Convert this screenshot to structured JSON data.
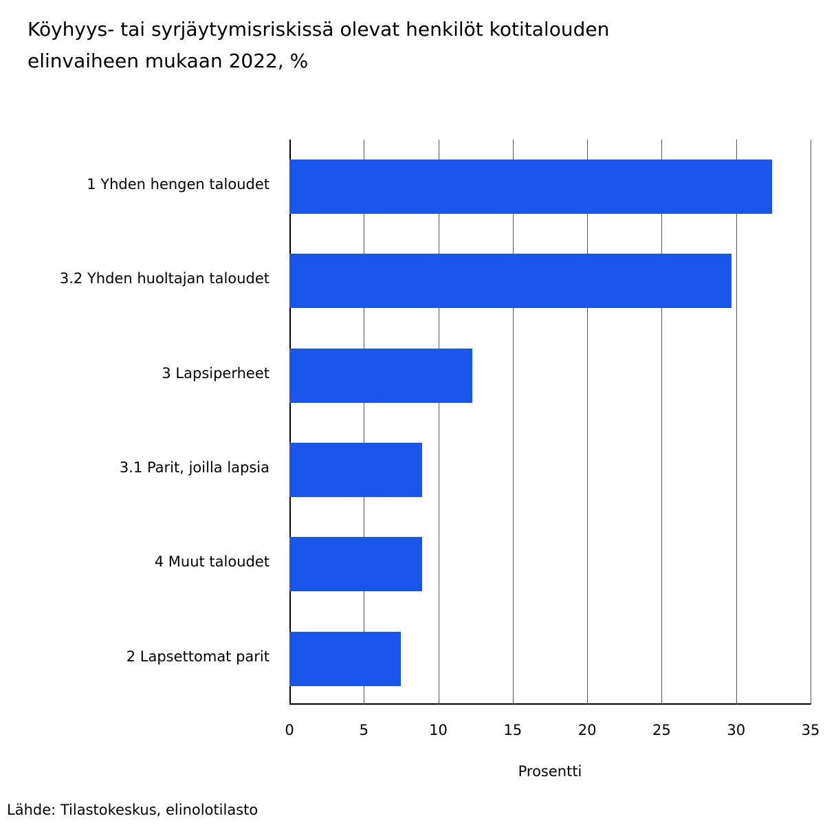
{
  "title": "Köyhyys- tai syrjäytymisriskissä olevat henkilöt kotitalouden elinvaiheen mukaan 2022, %",
  "source": "Lähde: Tilastokeskus, elinolotilasto",
  "colors": {
    "bar": "#1a56eb",
    "grid": "#555555"
  },
  "chart_data": {
    "type": "bar",
    "orientation": "horizontal",
    "title": "Köyhyys- tai syrjäytymisriskissä olevat henkilöt kotitalouden elinvaiheen mukaan 2022, %",
    "categories": [
      "1 Yhden hengen taloudet",
      "3.2 Yhden huoltajan taloudet",
      "3 Lapsiperheet",
      "3.1 Parit, joilla lapsia",
      "4 Muut taloudet",
      "2 Lapsettomat parit"
    ],
    "values": [
      32.4,
      29.7,
      12.3,
      8.9,
      8.9,
      7.5
    ],
    "xlabel": "Prosentti",
    "ylabel": "",
    "xlim": [
      0,
      35
    ],
    "xticks": [
      "0",
      "5",
      "10",
      "15",
      "20",
      "25",
      "30",
      "35"
    ],
    "grid": true,
    "legend": null,
    "source": "Lähde: Tilastokeskus, elinolotilasto"
  }
}
